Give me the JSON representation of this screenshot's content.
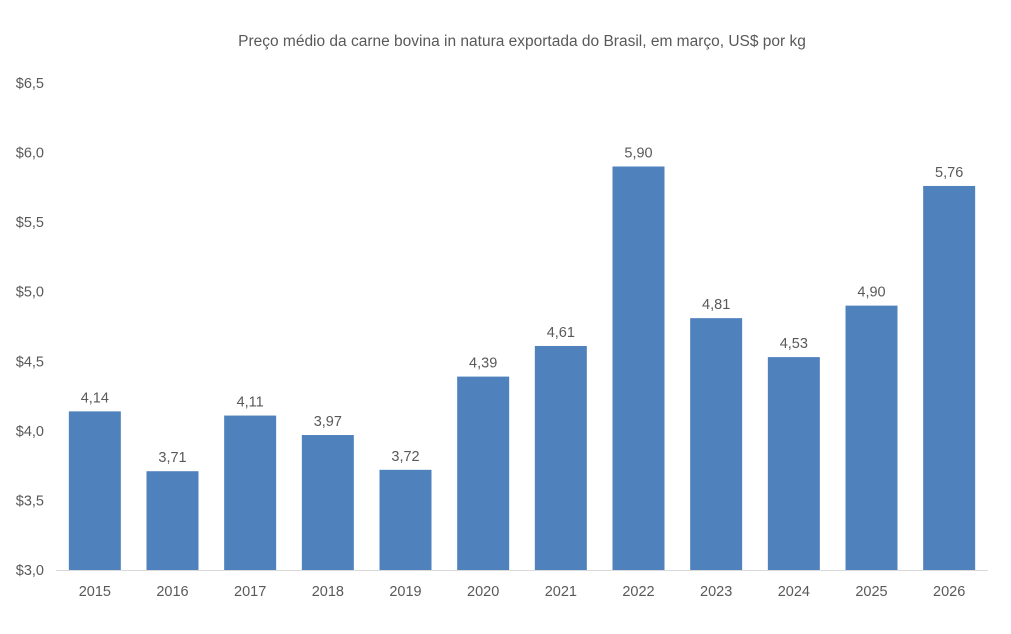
{
  "chart_data": {
    "type": "bar",
    "title": "Preço médio da carne bovina in natura exportada do Brasil, em março, US$ por kg",
    "xlabel": "",
    "ylabel": "",
    "categories": [
      "2015",
      "2016",
      "2017",
      "2018",
      "2019",
      "2020",
      "2021",
      "2022",
      "2023",
      "2024",
      "2025",
      "2026"
    ],
    "values": [
      4.14,
      3.71,
      4.11,
      3.97,
      3.72,
      4.39,
      4.61,
      5.9,
      4.81,
      4.53,
      4.9,
      5.76
    ],
    "data_labels": [
      "4,14",
      "3,71",
      "4,11",
      "3,97",
      "3,72",
      "4,39",
      "4,61",
      "5,90",
      "4,81",
      "4,53",
      "4,90",
      "5,76"
    ],
    "ylim": [
      3.0,
      6.5
    ],
    "yticks": [
      3.0,
      3.5,
      4.0,
      4.5,
      5.0,
      5.5,
      6.0,
      6.5
    ],
    "ytick_labels": [
      "$3,0",
      "$3,5",
      "$4,0",
      "$4,5",
      "$5,0",
      "$5,5",
      "$6,0",
      "$6,5"
    ],
    "grid": false,
    "legend": "none",
    "bar_color": "#4F81BD"
  }
}
